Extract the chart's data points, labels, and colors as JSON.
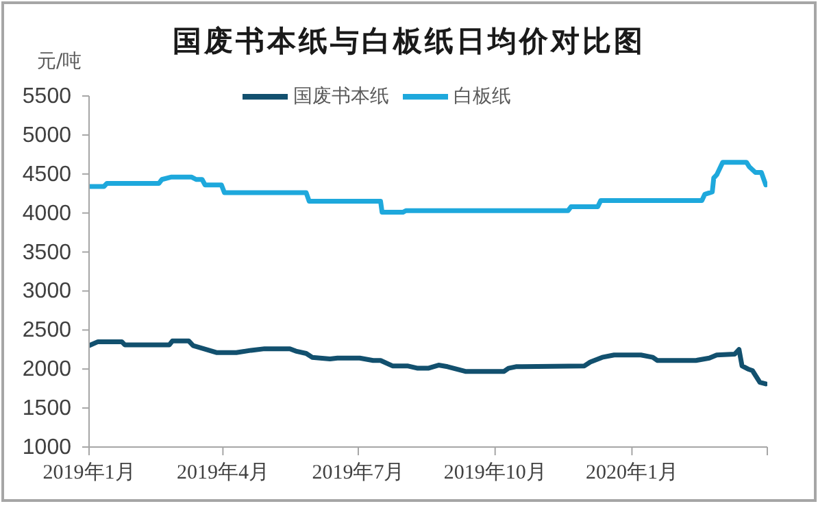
{
  "chart_data": {
    "type": "line",
    "title": "国废书本纸与白板纸日均价对比图",
    "ylabel": "元/吨",
    "legend": "top",
    "line_style": "solid",
    "ylim": [
      1000,
      5500
    ],
    "yticks": [
      1000,
      1500,
      2000,
      2500,
      3000,
      3500,
      4000,
      4500,
      5000,
      5500
    ],
    "xlim": [
      "2019-01-01",
      "2020-04-01"
    ],
    "xticks": [
      {
        "value": "2019-01-01",
        "label": "2019年1月"
      },
      {
        "value": "2019-04-01",
        "label": "2019年4月"
      },
      {
        "value": "2019-07-01",
        "label": "2019年7月"
      },
      {
        "value": "2019-10-01",
        "label": "2019年10月"
      },
      {
        "value": "2020-01-01",
        "label": "2020年1月"
      },
      {
        "value": "2020-04-01",
        "label": null
      }
    ],
    "series": [
      {
        "name": "国废书本纸",
        "color": "#12506e",
        "x": [
          "2019-01-01",
          "2019-01-07",
          "2019-01-23",
          "2019-01-25",
          "2019-02-24",
          "2019-02-26",
          "2019-03-09",
          "2019-03-12",
          "2019-03-21",
          "2019-03-28",
          "2019-04-10",
          "2019-04-20",
          "2019-04-29",
          "2019-05-16",
          "2019-05-20",
          "2019-05-27",
          "2019-05-31",
          "2019-06-12",
          "2019-06-17",
          "2019-07-02",
          "2019-07-11",
          "2019-07-16",
          "2019-07-24",
          "2019-08-03",
          "2019-08-10",
          "2019-08-17",
          "2019-08-24",
          "2019-08-30",
          "2019-09-11",
          "2019-10-07",
          "2019-10-10",
          "2019-10-15",
          "2019-11-30",
          "2019-12-04",
          "2019-12-12",
          "2019-12-20",
          "2020-01-07",
          "2020-01-15",
          "2020-01-18",
          "2020-02-13",
          "2020-02-22",
          "2020-02-27",
          "2020-03-10",
          "2020-03-13",
          "2020-03-15",
          "2020-03-19",
          "2020-03-22",
          "2020-03-27",
          "2020-03-31"
        ],
        "values": [
          2300,
          2350,
          2350,
          2310,
          2310,
          2360,
          2360,
          2300,
          2250,
          2210,
          2210,
          2240,
          2260,
          2260,
          2230,
          2200,
          2150,
          2130,
          2140,
          2140,
          2110,
          2110,
          2040,
          2040,
          2010,
          2010,
          2050,
          2030,
          1970,
          1970,
          2010,
          2030,
          2040,
          2090,
          2150,
          2180,
          2180,
          2150,
          2110,
          2110,
          2140,
          2180,
          2190,
          2250,
          2040,
          2000,
          1980,
          1830,
          1810
        ]
      },
      {
        "name": "白板纸",
        "color": "#1ea8dc",
        "x": [
          "2019-01-01",
          "2019-01-11",
          "2019-01-13",
          "2019-02-17",
          "2019-02-19",
          "2019-02-25",
          "2019-03-11",
          "2019-03-14",
          "2019-03-18",
          "2019-03-20",
          "2019-03-31",
          "2019-04-02",
          "2019-05-27",
          "2019-05-29",
          "2019-07-16",
          "2019-07-17",
          "2019-07-31",
          "2019-08-02",
          "2019-11-19",
          "2019-11-21",
          "2019-12-09",
          "2019-12-11",
          "2020-02-17",
          "2020-02-19",
          "2020-02-24",
          "2020-02-25",
          "2020-02-27",
          "2020-03-02",
          "2020-03-18",
          "2020-03-20",
          "2020-03-24",
          "2020-03-28",
          "2020-03-31"
        ],
        "values": [
          4340,
          4340,
          4380,
          4380,
          4430,
          4460,
          4460,
          4430,
          4430,
          4360,
          4360,
          4260,
          4260,
          4150,
          4150,
          4010,
          4010,
          4030,
          4030,
          4080,
          4080,
          4160,
          4160,
          4240,
          4270,
          4450,
          4490,
          4650,
          4650,
          4590,
          4520,
          4520,
          4360
        ]
      }
    ]
  }
}
